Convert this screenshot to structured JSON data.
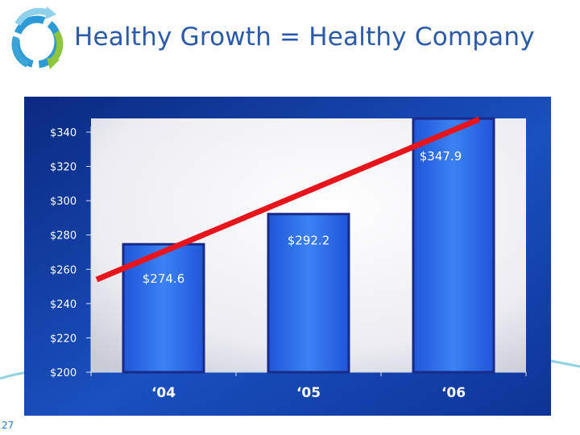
{
  "slide": {
    "title": "Healthy Growth = Healthy Company",
    "page_number": "27",
    "logo_icon": "circular-arrows-logo-icon"
  },
  "colors": {
    "title": "#2a5aa8",
    "panel_dark": "#0b2f86",
    "panel_mid": "#1b55c4",
    "bar": "#2e6fe8",
    "bar_border": "#1a2a88",
    "trend": "#e8141c",
    "page_number": "#2a7fd4"
  },
  "chart_data": {
    "type": "bar",
    "title": "",
    "xlabel": "",
    "ylabel": "",
    "categories": [
      "‘04",
      "‘05",
      "‘06"
    ],
    "values": [
      274.6,
      292.2,
      347.9
    ],
    "data_labels": [
      "$274.6",
      "$292.2",
      "$347.9"
    ],
    "ylim": [
      200,
      340
    ],
    "yticks": [
      200,
      220,
      240,
      260,
      280,
      300,
      320,
      340
    ],
    "ytick_labels": [
      "$200",
      "$220",
      "$240",
      "$260",
      "$280",
      "$300",
      "$320",
      "$340"
    ],
    "grid": false,
    "legend": "none",
    "trend_line": true
  }
}
